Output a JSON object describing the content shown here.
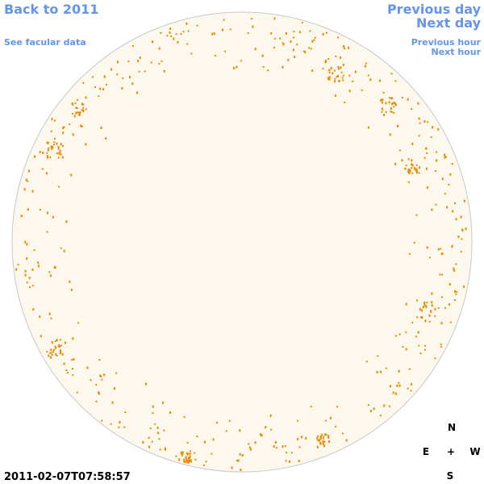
{
  "header": {
    "back_link": "Back to 2011",
    "facular_link": "See facular data",
    "previous_day": "Previous day",
    "next_day": "Next day",
    "previous_hour": "Previous hour",
    "next_hour": "Next hour"
  },
  "timestamp": "2011-02-07T07:58:57",
  "compass": {
    "north": "N",
    "east": "E",
    "center": "+",
    "west": "W",
    "south": "S"
  }
}
